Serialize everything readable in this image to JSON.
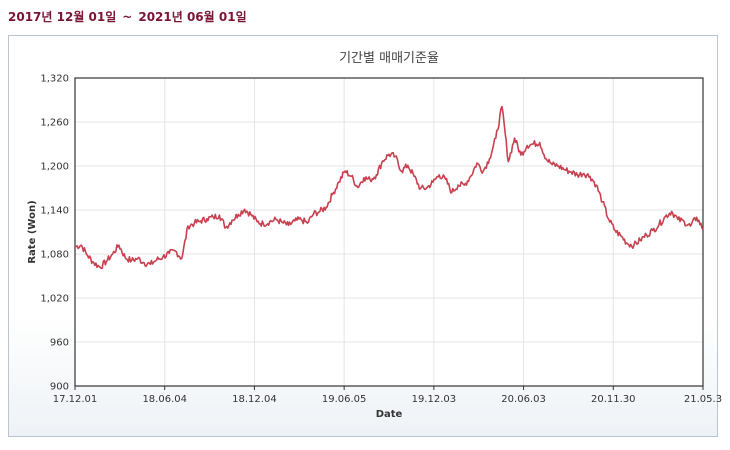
{
  "header": {
    "start": "2017년 12월 01일",
    "separator": "~",
    "end": "2021년 06월 01일"
  },
  "colors": {
    "line": "#c8414f",
    "header": "#7a1533",
    "grid": "#e4e4e4",
    "frame": "#333333"
  },
  "chart_data": {
    "type": "line",
    "title": "기간별 매매기준율",
    "xlabel": "Date",
    "ylabel": "Rate (Won)",
    "ylim": [
      900,
      1320
    ],
    "yticks": [
      900,
      960,
      1020,
      1080,
      1140,
      1200,
      1260,
      1320
    ],
    "ytick_labels": [
      "900",
      "960",
      "1,020",
      "1,080",
      "1,140",
      "1,200",
      "1,260",
      "1,320"
    ],
    "xtick_labels": [
      "17.12.01",
      "18.06.04",
      "18.12.04",
      "19.06.05",
      "19.12.03",
      "20.06.03",
      "20.11.30",
      "21.05.3"
    ],
    "grid": true,
    "series": [
      {
        "x": [
          0,
          0.01,
          0.02,
          0.03,
          0.04,
          0.05,
          0.06,
          0.07,
          0.08,
          0.09,
          0.1,
          0.11,
          0.12,
          0.13,
          0.14,
          0.15,
          0.16,
          0.17,
          0.18,
          0.19,
          0.2,
          0.21,
          0.22,
          0.23,
          0.24,
          0.25,
          0.26,
          0.27,
          0.28,
          0.29,
          0.3,
          0.31,
          0.32,
          0.33,
          0.34,
          0.35,
          0.36,
          0.37,
          0.38,
          0.39,
          0.4,
          0.41,
          0.42,
          0.43,
          0.44,
          0.45,
          0.46,
          0.47,
          0.48,
          0.49,
          0.5,
          0.51,
          0.52,
          0.53,
          0.54,
          0.55,
          0.56,
          0.57,
          0.58,
          0.59,
          0.6,
          0.61,
          0.62,
          0.63,
          0.64,
          0.65,
          0.66,
          0.67,
          0.68,
          0.69,
          0.7,
          0.71,
          0.72,
          0.73,
          0.74,
          0.75,
          0.76,
          0.77,
          0.78,
          0.79,
          0.8,
          0.81,
          0.82,
          0.83,
          0.84,
          0.85,
          0.86,
          0.87,
          0.88,
          0.89,
          0.9,
          0.91,
          0.92,
          0.93,
          0.94,
          0.95,
          0.96,
          0.97,
          0.98,
          0.99,
          1
        ],
        "values": [
          1090,
          1092,
          1078,
          1068,
          1062,
          1070,
          1080,
          1092,
          1075,
          1071,
          1074,
          1068,
          1066,
          1072,
          1076,
          1081,
          1084,
          1074,
          1118,
          1122,
          1125,
          1128,
          1130,
          1133,
          1116,
          1126,
          1134,
          1141,
          1134,
          1124,
          1121,
          1124,
          1127,
          1123,
          1119,
          1125,
          1127,
          1122,
          1135,
          1138,
          1144,
          1161,
          1178,
          1193,
          1186,
          1171,
          1184,
          1181,
          1188,
          1207,
          1216,
          1213,
          1193,
          1201,
          1186,
          1169,
          1170,
          1178,
          1188,
          1182,
          1164,
          1174,
          1174,
          1186,
          1204,
          1193,
          1210,
          1238,
          1281,
          1206,
          1238,
          1215,
          1228,
          1230,
          1232,
          1210,
          1202,
          1200,
          1195,
          1192,
          1188,
          1190,
          1186,
          1174,
          1151,
          1127,
          1112,
          1104,
          1094,
          1092,
          1099,
          1106,
          1112,
          1120,
          1131,
          1138,
          1127,
          1124,
          1118,
          1130,
          1114
        ]
      }
    ]
  }
}
